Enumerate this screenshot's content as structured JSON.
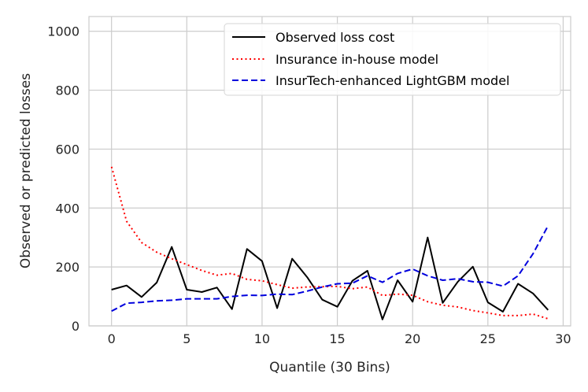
{
  "chart_data": {
    "type": "line",
    "title": "",
    "xlabel": "Quantile (30 Bins)",
    "ylabel": "Observed or predicted losses",
    "xlim": [
      -1.5,
      30.5
    ],
    "ylim": [
      0,
      1050
    ],
    "xticks": [
      0,
      5,
      10,
      15,
      20,
      25,
      30
    ],
    "yticks": [
      0,
      200,
      400,
      600,
      800,
      1000
    ],
    "grid": true,
    "legend_position": "top-right",
    "x": [
      0,
      1,
      2,
      3,
      4,
      5,
      6,
      7,
      8,
      9,
      10,
      11,
      12,
      13,
      14,
      15,
      16,
      17,
      18,
      19,
      20,
      21,
      22,
      23,
      24,
      25,
      26,
      27,
      28,
      29
    ],
    "series": [
      {
        "name": "Observed loss cost",
        "color": "#000000",
        "style": "solid",
        "values": [
          123,
          137,
          98,
          147,
          268,
          123,
          115,
          130,
          57,
          261,
          220,
          60,
          228,
          165,
          89,
          65,
          153,
          187,
          22,
          155,
          82,
          300,
          78,
          150,
          201,
          80,
          48,
          143,
          110,
          54
        ]
      },
      {
        "name": "Insurance in-house model",
        "color": "#ff0000",
        "style": "dotted",
        "values": [
          540,
          355,
          283,
          250,
          228,
          208,
          188,
          172,
          178,
          158,
          153,
          140,
          128,
          132,
          133,
          134,
          126,
          132,
          103,
          108,
          104,
          82,
          70,
          64,
          52,
          44,
          35,
          35,
          40,
          24
        ]
      },
      {
        "name": "InsurTech-enhanced LightGBM model",
        "color": "#0000dd",
        "style": "dashed",
        "values": [
          50,
          77,
          80,
          85,
          87,
          92,
          92,
          92,
          100,
          104,
          103,
          108,
          106,
          118,
          132,
          143,
          145,
          170,
          148,
          178,
          193,
          170,
          155,
          160,
          150,
          148,
          135,
          170,
          245,
          340
        ]
      }
    ]
  }
}
